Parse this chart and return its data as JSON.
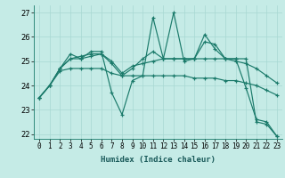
{
  "xlabel": "Humidex (Indice chaleur)",
  "xlim": [
    -0.5,
    23.5
  ],
  "ylim": [
    21.8,
    27.3
  ],
  "yticks": [
    22,
    23,
    24,
    25,
    26,
    27
  ],
  "xticks": [
    0,
    1,
    2,
    3,
    4,
    5,
    6,
    7,
    8,
    9,
    10,
    11,
    12,
    13,
    14,
    15,
    16,
    17,
    18,
    19,
    20,
    21,
    22,
    23
  ],
  "bg_color": "#c5ebe6",
  "grid_color": "#a8d8d2",
  "line_color": "#1a7a6a",
  "lines": [
    [
      23.5,
      24.0,
      24.7,
      25.3,
      25.1,
      25.4,
      25.4,
      23.7,
      22.8,
      24.2,
      24.4,
      26.8,
      25.1,
      27.0,
      25.0,
      25.1,
      25.8,
      25.7,
      25.1,
      25.1,
      25.1,
      22.5,
      22.4,
      21.9
    ],
    [
      23.5,
      24.0,
      24.7,
      25.1,
      25.2,
      25.3,
      25.3,
      25.0,
      24.5,
      24.8,
      24.9,
      25.0,
      25.1,
      25.1,
      25.1,
      25.1,
      25.1,
      25.1,
      25.1,
      25.0,
      24.9,
      24.7,
      24.4,
      24.1
    ],
    [
      23.5,
      24.0,
      24.6,
      24.7,
      24.7,
      24.7,
      24.7,
      24.5,
      24.4,
      24.4,
      24.4,
      24.4,
      24.4,
      24.4,
      24.4,
      24.3,
      24.3,
      24.3,
      24.2,
      24.2,
      24.1,
      24.0,
      23.8,
      23.6
    ],
    [
      23.5,
      24.0,
      24.7,
      25.1,
      25.1,
      25.2,
      25.3,
      24.9,
      24.4,
      24.7,
      25.1,
      25.4,
      25.1,
      25.1,
      25.1,
      25.1,
      26.1,
      25.5,
      25.1,
      25.1,
      23.9,
      22.6,
      22.5,
      21.9
    ]
  ],
  "xlabel_fontsize": 6.5,
  "xlabel_fontweight": "bold",
  "xlabel_color": "#1a5a5a",
  "tick_fontsize": 5.5,
  "ytick_fontsize": 6.0
}
